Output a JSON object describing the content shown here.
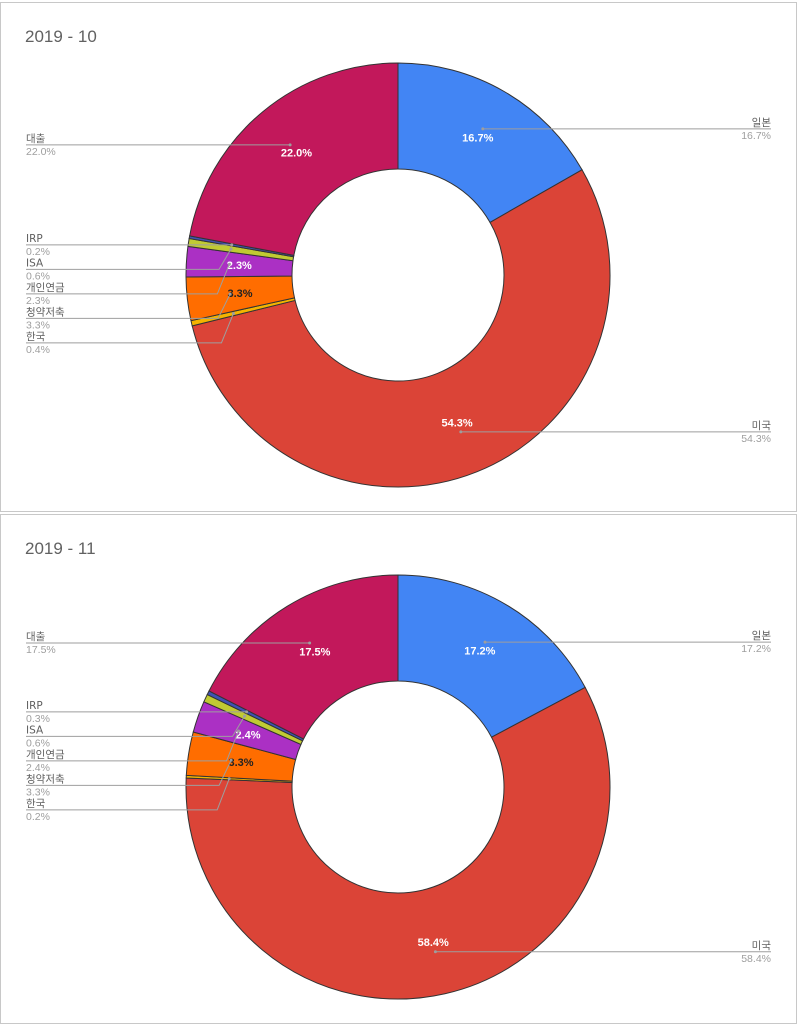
{
  "chart_data": [
    {
      "type": "pie",
      "subtype": "donut",
      "title": "2019 - 10",
      "slices": [
        {
          "label": "일본",
          "value": 16.7,
          "display": "16.7%",
          "color": "#4285f4",
          "text_color": "#ffffff"
        },
        {
          "label": "미국",
          "value": 54.3,
          "display": "54.3%",
          "color": "#db4437",
          "text_color": "#ffffff"
        },
        {
          "label": "한국",
          "value": 0.4,
          "display": "0.4%",
          "color": "#f4b400",
          "text_color": "#ffffff"
        },
        {
          "label": "청약저축",
          "value": 3.3,
          "display": "3.3%",
          "color": "#ff6d00",
          "text_color": "#222222"
        },
        {
          "label": "개인연금",
          "value": 2.3,
          "display": "2.3%",
          "color": "#ab30c4",
          "text_color": "#ffffff"
        },
        {
          "label": "ISA",
          "value": 0.6,
          "display": "0.6%",
          "color": "#c0ca33",
          "text_color": "#ffffff"
        },
        {
          "label": "IRP",
          "value": 0.2,
          "display": "0.2%",
          "color": "#3f51b5",
          "text_color": "#ffffff"
        },
        {
          "label": "대출",
          "value": 22.0,
          "display": "22.0%",
          "color": "#c2185b",
          "text_color": "#ffffff"
        }
      ]
    },
    {
      "type": "pie",
      "subtype": "donut",
      "title": "2019 - 11",
      "slices": [
        {
          "label": "일본",
          "value": 17.2,
          "display": "17.2%",
          "color": "#4285f4",
          "text_color": "#ffffff"
        },
        {
          "label": "미국",
          "value": 58.4,
          "display": "58.4%",
          "color": "#db4437",
          "text_color": "#ffffff"
        },
        {
          "label": "한국",
          "value": 0.2,
          "display": "0.2%",
          "color": "#f4b400",
          "text_color": "#ffffff"
        },
        {
          "label": "청약저축",
          "value": 3.3,
          "display": "3.3%",
          "color": "#ff6d00",
          "text_color": "#222222"
        },
        {
          "label": "개인연금",
          "value": 2.4,
          "display": "2.4%",
          "color": "#ab30c4",
          "text_color": "#ffffff"
        },
        {
          "label": "ISA",
          "value": 0.6,
          "display": "0.6%",
          "color": "#c0ca33",
          "text_color": "#ffffff"
        },
        {
          "label": "IRP",
          "value": 0.3,
          "display": "0.3%",
          "color": "#3f51b5",
          "text_color": "#ffffff"
        },
        {
          "label": "대출",
          "value": 17.5,
          "display": "17.5%",
          "color": "#c2185b",
          "text_color": "#ffffff"
        }
      ]
    }
  ]
}
